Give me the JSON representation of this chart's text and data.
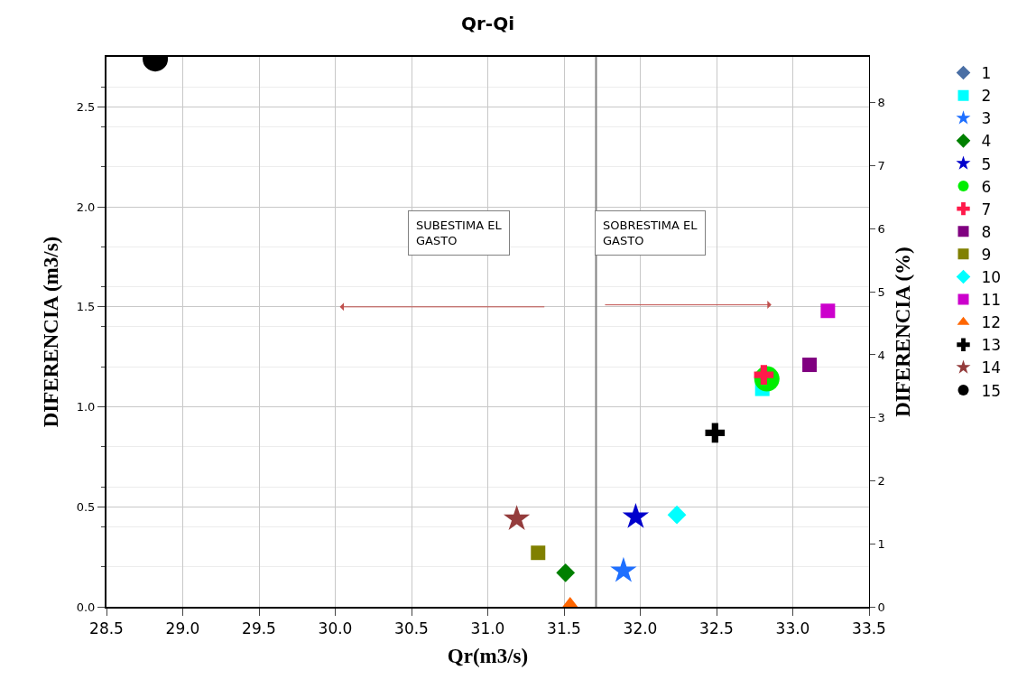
{
  "chart_data": {
    "type": "scatter",
    "title": "Qr-Qi",
    "xlabel": "Qr(m3/s)",
    "ylabel": "DIFERENCIA (m3/s)",
    "y2label": "DIFERENCIA (%)",
    "annotations": [
      "SUBESTIMA EL GASTO",
      "SOBRESTIMA EL GASTO"
    ],
    "series": [
      {
        "name": "1",
        "color": "#4a6fa5",
        "marker": "diamond",
        "x": [
          null
        ],
        "values": [
          null
        ]
      },
      {
        "name": "2",
        "color": "#00ffff",
        "marker": "square",
        "x": [
          32.8
        ],
        "values": [
          1.09
        ]
      },
      {
        "name": "3",
        "color": "#1e6fff",
        "marker": "star",
        "x": [
          31.89
        ],
        "values": [
          0.18
        ]
      },
      {
        "name": "4",
        "color": "#008000",
        "marker": "diamond",
        "x": [
          31.51
        ],
        "values": [
          0.17
        ]
      },
      {
        "name": "5",
        "color": "#0000cc",
        "marker": "star",
        "x": [
          31.97
        ],
        "values": [
          0.45
        ]
      },
      {
        "name": "6",
        "color": "#00ee00",
        "marker": "circle",
        "x": [
          32.83
        ],
        "values": [
          1.14
        ]
      },
      {
        "name": "7",
        "color": "#ff1a4a",
        "marker": "cross",
        "x": [
          32.81
        ],
        "values": [
          1.16
        ]
      },
      {
        "name": "8",
        "color": "#800080",
        "marker": "square",
        "x": [
          33.11
        ],
        "values": [
          1.21
        ]
      },
      {
        "name": "9",
        "color": "#808000",
        "marker": "square",
        "x": [
          31.33
        ],
        "values": [
          0.27
        ]
      },
      {
        "name": "10",
        "color": "#00ffff",
        "marker": "diamond",
        "x": [
          32.24
        ],
        "values": [
          0.46
        ]
      },
      {
        "name": "11",
        "color": "#cc00cc",
        "marker": "square",
        "x": [
          33.23
        ],
        "values": [
          1.48
        ]
      },
      {
        "name": "12",
        "color": "#ff6600",
        "marker": "triangle",
        "x": [
          31.54
        ],
        "values": [
          0.0
        ]
      },
      {
        "name": "13",
        "color": "#000000",
        "marker": "cross",
        "x": [
          32.49
        ],
        "values": [
          0.87
        ]
      },
      {
        "name": "14",
        "color": "#943c3c",
        "marker": "star",
        "x": [
          31.19
        ],
        "values": [
          0.44
        ]
      },
      {
        "name": "15",
        "color": "#000000",
        "marker": "circle",
        "x": [
          28.82
        ],
        "values": [
          2.74
        ]
      }
    ],
    "ref_lines": [
      {
        "axis": "x",
        "value": 31.71,
        "color": "#808080"
      }
    ],
    "xlim": [
      28.5,
      33.5
    ],
    "xticks": [
      {
        "value": 28.5,
        "label": "28.5"
      },
      {
        "value": 29,
        "label": "29.0"
      },
      {
        "value": 29.5,
        "label": "29.5"
      },
      {
        "value": 30,
        "label": "30.0"
      },
      {
        "value": 30.5,
        "label": "30.5"
      },
      {
        "value": 31,
        "label": "31.0"
      },
      {
        "value": 31.5,
        "label": "31.5"
      },
      {
        "value": 32,
        "label": "32.0"
      },
      {
        "value": 32.5,
        "label": "32.5"
      },
      {
        "value": 33,
        "label": "33.0"
      },
      {
        "value": 33.5,
        "label": "33.5"
      }
    ],
    "ylim": [
      0,
      2.75
    ],
    "yticks": [
      {
        "value": 0,
        "label": "0.0"
      },
      {
        "value": 0.5,
        "label": "0.5"
      },
      {
        "value": 1,
        "label": "1.0"
      },
      {
        "value": 1.5,
        "label": "1.5"
      },
      {
        "value": 2,
        "label": "2.0"
      },
      {
        "value": 2.5,
        "label": "2.5"
      }
    ],
    "y2lim": [
      0,
      8.73
    ],
    "y2ticks": [
      0,
      1,
      2,
      3,
      4,
      5,
      6,
      7,
      8
    ],
    "grid": true,
    "legend": "right"
  }
}
